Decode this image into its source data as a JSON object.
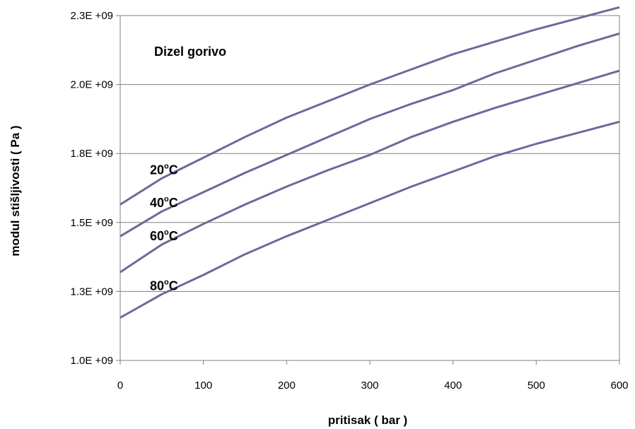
{
  "chart_data": {
    "type": "line",
    "title": "",
    "annotation": "Dizel gorivo",
    "xlabel": "pritisak ( bar )",
    "ylabel": "modul stišljivosti ( Pa )",
    "xlim": [
      0,
      600
    ],
    "ylim": [
      1000000000,
      2250000000
    ],
    "x_ticks": [
      0,
      100,
      200,
      300,
      400,
      500,
      600
    ],
    "x_tick_labels": [
      "0",
      "100",
      "200",
      "300",
      "400",
      "500",
      "600"
    ],
    "y_ticks": [
      1000000000,
      1250000000,
      1500000000,
      1750000000,
      2000000000,
      2250000000
    ],
    "y_tick_labels": [
      "1.0E +09",
      "1.3E +09",
      "1.5E +09",
      "1.8E +09",
      "2.0E +09",
      "2.3E +09"
    ],
    "grid": "horizontal",
    "line_color": "#6a6a9a",
    "x": [
      0,
      50,
      100,
      150,
      200,
      250,
      300,
      350,
      400,
      450,
      500,
      550,
      600
    ],
    "series": [
      {
        "label": {
          "value": "20",
          "degree": "o",
          "unit": "C"
        },
        "values": [
          1565000000,
          1660000000,
          1735000000,
          1810000000,
          1880000000,
          1940000000,
          2000000000,
          2055000000,
          2110000000,
          2155000000,
          2200000000,
          2240000000,
          2280000000
        ]
      },
      {
        "label": {
          "value": "40",
          "degree": "o",
          "unit": "C"
        },
        "values": [
          1450000000,
          1540000000,
          1610000000,
          1680000000,
          1745000000,
          1810000000,
          1875000000,
          1930000000,
          1980000000,
          2040000000,
          2090000000,
          2140000000,
          2185000000
        ]
      },
      {
        "label": {
          "value": "60",
          "degree": "o",
          "unit": "C"
        },
        "values": [
          1320000000,
          1420000000,
          1495000000,
          1565000000,
          1630000000,
          1690000000,
          1745000000,
          1810000000,
          1865000000,
          1915000000,
          1960000000,
          2005000000,
          2050000000
        ]
      },
      {
        "label": {
          "value": "80",
          "degree": "o",
          "unit": "C"
        },
        "values": [
          1155000000,
          1240000000,
          1310000000,
          1385000000,
          1450000000,
          1510000000,
          1570000000,
          1630000000,
          1685000000,
          1740000000,
          1785000000,
          1825000000,
          1865000000
        ]
      }
    ]
  }
}
